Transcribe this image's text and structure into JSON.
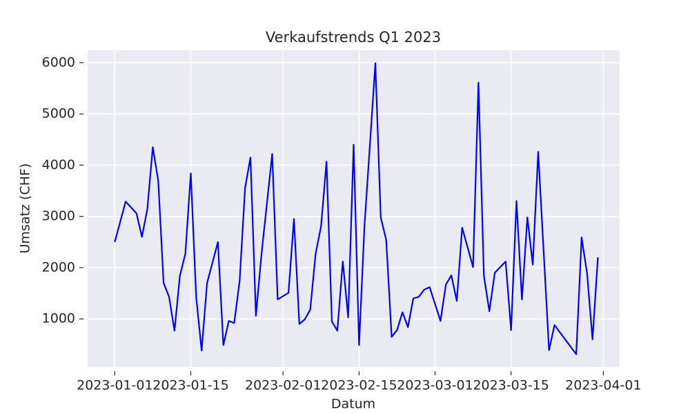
{
  "chart_data": {
    "type": "line",
    "title": "Verkaufstrends Q1 2023",
    "x_label": "Datum",
    "y_label": "Umsatz (CHF)",
    "x": [
      "2023-01-01",
      "2023-01-03",
      "2023-01-05",
      "2023-01-06",
      "2023-01-07",
      "2023-01-08",
      "2023-01-09",
      "2023-01-10",
      "2023-01-11",
      "2023-01-12",
      "2023-01-13",
      "2023-01-14",
      "2023-01-15",
      "2023-01-16",
      "2023-01-17",
      "2023-01-18",
      "2023-01-20",
      "2023-01-21",
      "2023-01-22",
      "2023-01-23",
      "2023-01-24",
      "2023-01-25",
      "2023-01-26",
      "2023-01-27",
      "2023-01-28",
      "2023-01-30",
      "2023-01-31",
      "2023-02-02",
      "2023-02-03",
      "2023-02-04",
      "2023-02-05",
      "2023-02-06",
      "2023-02-07",
      "2023-02-08",
      "2023-02-09",
      "2023-02-10",
      "2023-02-11",
      "2023-02-12",
      "2023-02-13",
      "2023-02-14",
      "2023-02-15",
      "2023-02-16",
      "2023-02-18",
      "2023-02-19",
      "2023-02-20",
      "2023-02-21",
      "2023-02-22",
      "2023-02-23",
      "2023-02-24",
      "2023-02-25",
      "2023-02-26",
      "2023-02-27",
      "2023-02-28",
      "2023-03-02",
      "2023-03-03",
      "2023-03-04",
      "2023-03-05",
      "2023-03-06",
      "2023-03-08",
      "2023-03-09",
      "2023-03-10",
      "2023-03-11",
      "2023-03-12",
      "2023-03-14",
      "2023-03-15",
      "2023-03-16",
      "2023-03-17",
      "2023-03-18",
      "2023-03-19",
      "2023-03-20",
      "2023-03-22",
      "2023-03-23",
      "2023-03-27",
      "2023-03-28",
      "2023-03-29",
      "2023-03-30",
      "2023-03-31"
    ],
    "series": [
      {
        "name": "Umsatz",
        "color": "#0000ff",
        "values": [
          2500,
          3290,
          3060,
          2600,
          3140,
          4350,
          3700,
          1700,
          1430,
          770,
          1840,
          2270,
          3840,
          1430,
          380,
          1700,
          2500,
          490,
          960,
          920,
          1740,
          3560,
          4150,
          1060,
          2240,
          4220,
          1380,
          1510,
          2950,
          900,
          990,
          1180,
          2270,
          2810,
          4070,
          950,
          770,
          2120,
          1030,
          4400,
          490,
          2810,
          5990,
          2980,
          2540,
          650,
          780,
          1130,
          840,
          1400,
          1430,
          1570,
          1620,
          960,
          1670,
          1850,
          1350,
          2780,
          2010,
          5610,
          1840,
          1150,
          1900,
          2120,
          780,
          3300,
          1380,
          2980,
          2060,
          4260,
          390,
          880,
          310,
          2590,
          1890,
          600,
          2200
        ]
      }
    ],
    "xlim": [
      "2022-12-27",
      "2023-04-04"
    ],
    "xticks": [
      "2023-01-01",
      "2023-01-15",
      "2023-02-01",
      "2023-02-15",
      "2023-03-01",
      "2023-03-15",
      "2023-04-01"
    ],
    "ylim": [
      60,
      6240
    ],
    "yticks": [
      1000,
      2000,
      3000,
      4000,
      5000,
      6000
    ],
    "grid": true
  }
}
